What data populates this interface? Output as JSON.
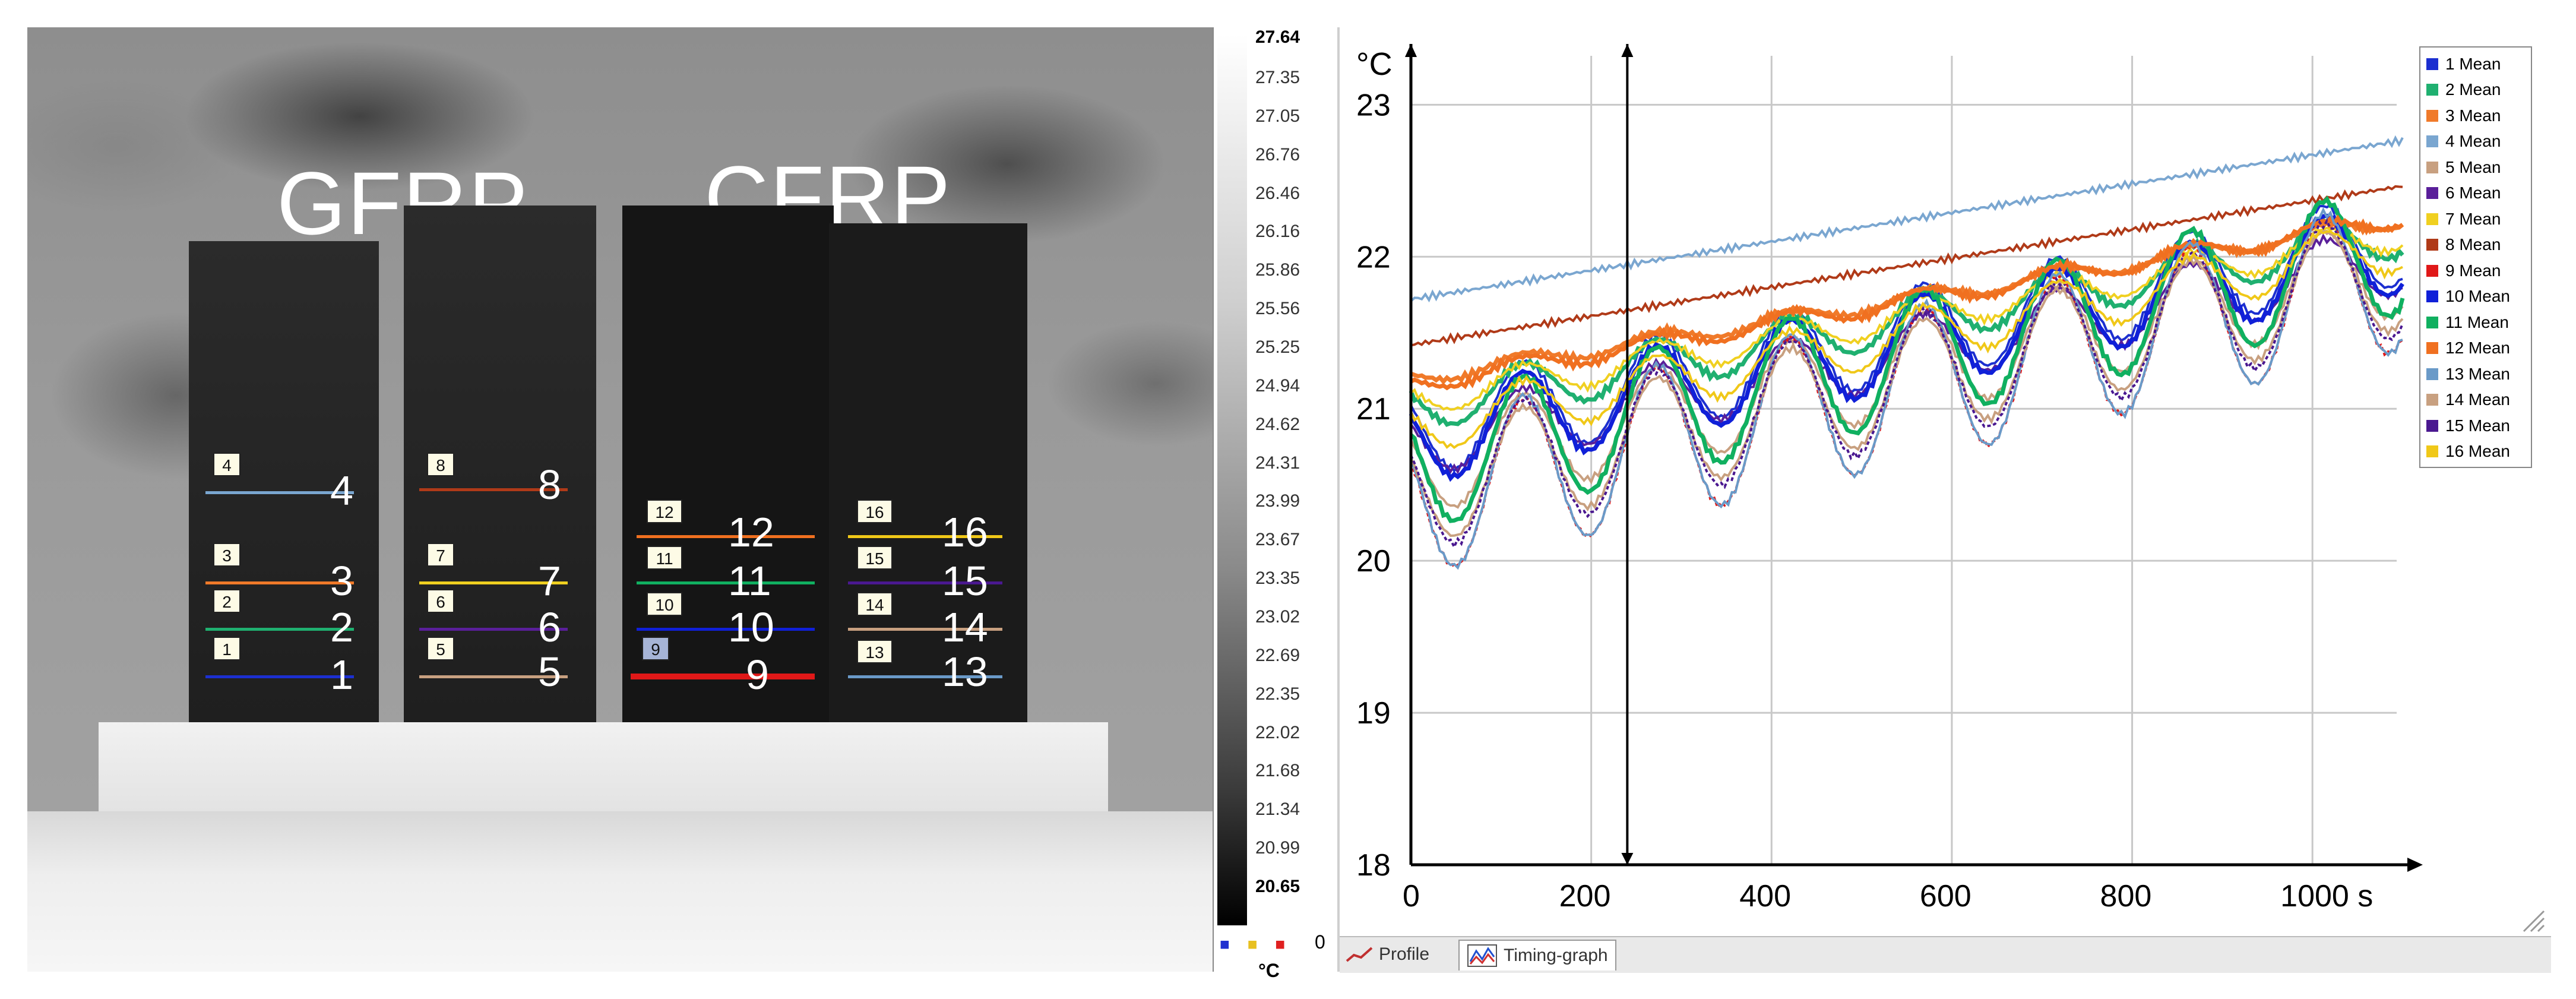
{
  "thermal_image": {
    "materials": [
      {
        "id": "gfrp",
        "label": "GFRP"
      },
      {
        "id": "cfrp",
        "label": "CFRP"
      }
    ],
    "rois": [
      {
        "id": "1",
        "label": "1",
        "color": "#1c2fd0"
      },
      {
        "id": "2",
        "label": "2",
        "color": "#1fb070"
      },
      {
        "id": "3",
        "label": "3",
        "color": "#f07a2a"
      },
      {
        "id": "4",
        "label": "4",
        "color": "#7aa6d0"
      },
      {
        "id": "5",
        "label": "5",
        "color": "#c8a080"
      },
      {
        "id": "6",
        "label": "6",
        "color": "#5a1f9a"
      },
      {
        "id": "7",
        "label": "7",
        "color": "#f0d020"
      },
      {
        "id": "8",
        "label": "8",
        "color": "#b03a18"
      },
      {
        "id": "9",
        "label": "9",
        "color": "#e01818"
      },
      {
        "id": "10",
        "label": "10",
        "color": "#1020d8"
      },
      {
        "id": "11",
        "label": "11",
        "color": "#10b060"
      },
      {
        "id": "12",
        "label": "12",
        "color": "#f07020"
      },
      {
        "id": "13",
        "label": "13",
        "color": "#6a9ac8"
      },
      {
        "id": "14",
        "label": "14",
        "color": "#c8a080"
      },
      {
        "id": "15",
        "label": "15",
        "color": "#4a1890"
      },
      {
        "id": "16",
        "label": "16",
        "color": "#f0c818"
      }
    ]
  },
  "scale": {
    "max": "27.64",
    "min": "20.65",
    "labels": [
      "27.35",
      "27.05",
      "26.76",
      "26.46",
      "26.16",
      "25.86",
      "25.56",
      "25.25",
      "24.94",
      "24.62",
      "24.31",
      "23.99",
      "23.67",
      "23.35",
      "23.02",
      "22.69",
      "22.35",
      "22.02",
      "21.68",
      "21.34",
      "20.99"
    ],
    "zero": "0",
    "unit": "°C"
  },
  "chart_data": {
    "type": "line",
    "ylabel": "°C",
    "xlabel": "",
    "ylim": [
      18,
      23.4
    ],
    "xlim": [
      0,
      1100
    ],
    "yticks": [
      "18",
      "19",
      "20",
      "21",
      "22",
      "23"
    ],
    "xticks": [
      "0",
      "200",
      "400",
      "600",
      "800",
      "1000 s"
    ],
    "cursor_x": 240,
    "legend_position": "top-right",
    "series": [
      {
        "name": "1 Mean",
        "color": "#1c2fd0",
        "base": 20.55,
        "slope": 0.00115,
        "amp": 0.62,
        "phase": 2.1
      },
      {
        "name": "2 Mean",
        "color": "#1fb070",
        "base": 20.85,
        "slope": 0.00105,
        "amp": 0.32,
        "phase": 2.3
      },
      {
        "name": "3 Mean",
        "color": "#f07a2a",
        "base": 21.15,
        "slope": 0.00095,
        "amp": 0.1,
        "phase": 2.5
      },
      {
        "name": "4 Mean",
        "color": "#7aa6d0",
        "base": 21.72,
        "slope": 0.00095,
        "amp": 0.0,
        "phase": 0
      },
      {
        "name": "5 Mean",
        "color": "#c8a080",
        "base": 20.3,
        "slope": 0.0012,
        "amp": 0.65,
        "phase": 1.9
      },
      {
        "name": "6 Mean",
        "color": "#5a1f9a",
        "base": 20.55,
        "slope": 0.0011,
        "amp": 0.45,
        "phase": 2.0
      },
      {
        "name": "7 Mean",
        "color": "#f0d020",
        "base": 20.95,
        "slope": 0.001,
        "amp": 0.22,
        "phase": 2.2
      },
      {
        "name": "8 Mean",
        "color": "#b03a18",
        "base": 21.42,
        "slope": 0.00095,
        "amp": 0.0,
        "phase": 0
      },
      {
        "name": "9 Mean",
        "color": "#e01818",
        "base": 19.9,
        "slope": 0.00135,
        "amp": 1.0,
        "phase": 1.6
      },
      {
        "name": "10 Mean",
        "color": "#1020d8",
        "base": 20.5,
        "slope": 0.00115,
        "amp": 0.6,
        "phase": 1.8
      },
      {
        "name": "11 Mean",
        "color": "#10b060",
        "base": 20.2,
        "slope": 0.0013,
        "amp": 0.85,
        "phase": 1.7
      },
      {
        "name": "12 Mean",
        "color": "#f07020",
        "base": 21.1,
        "slope": 0.001,
        "amp": 0.12,
        "phase": 2.4
      },
      {
        "name": "13 Mean",
        "color": "#6a9ac8",
        "base": 19.9,
        "slope": 0.00135,
        "amp": 1.02,
        "phase": 1.6
      },
      {
        "name": "14 Mean",
        "color": "#c8a080",
        "base": 20.1,
        "slope": 0.0013,
        "amp": 0.75,
        "phase": 1.75
      },
      {
        "name": "15 Mean",
        "color": "#4a1890",
        "base": 20.05,
        "slope": 0.0013,
        "amp": 0.85,
        "phase": 1.65
      },
      {
        "name": "16 Mean",
        "color": "#f0c818",
        "base": 20.7,
        "slope": 0.0011,
        "amp": 0.35,
        "phase": 2.1
      }
    ],
    "period_s": 148
  },
  "tabs": {
    "profile": "Profile",
    "timing_graph": "Timing-graph"
  }
}
